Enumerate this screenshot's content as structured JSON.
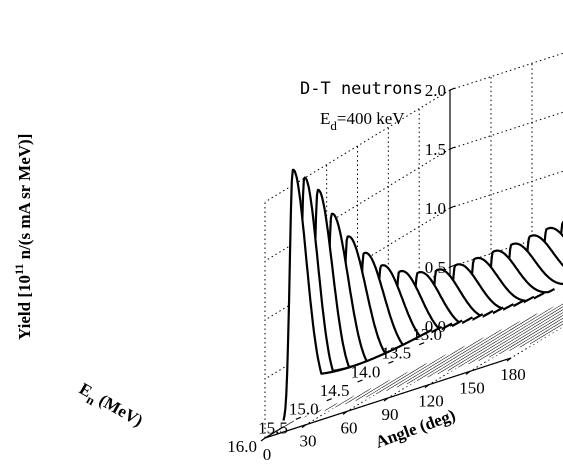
{
  "chart_data": {
    "type": "waterfall-3d",
    "title": "",
    "annotation": {
      "line1": "D-T neutrons",
      "line2_symbol": "E",
      "line2_sub": "d",
      "line2_value": "=400 keV"
    },
    "xaxis": {
      "label": "Angle (deg)",
      "range": [
        0,
        180
      ],
      "ticks": [
        "0",
        "30",
        "60",
        "90",
        "120",
        "150",
        "180"
      ],
      "tick_values": [
        0,
        30,
        60,
        90,
        120,
        150,
        180
      ]
    },
    "yaxis": {
      "label_symbol": "E",
      "label_sub": "n",
      "label_rest": " (MeV)",
      "range": [
        13.0,
        16.0
      ],
      "ticks": [
        "13.0",
        "13.5",
        "14.0",
        "14.5",
        "15.0",
        "15.5",
        "16.0"
      ],
      "tick_values": [
        13.0,
        13.5,
        14.0,
        14.5,
        15.0,
        15.5,
        16.0
      ]
    },
    "zaxis": {
      "label_pre": "Yield [10",
      "label_sup": "11",
      "label_post": " n/(s mA sr MeV)]",
      "range": [
        0,
        2.0
      ],
      "ticks": [
        "0.0",
        "0.5",
        "1.0",
        "1.5",
        "2.0"
      ],
      "tick_values": [
        0,
        0.5,
        1.0,
        1.5,
        2.0
      ]
    },
    "grid": true,
    "series_description": "Neutron yield spectra vs angle; peak energy falls from ~15.5 MeV at 0 deg to ~13.4 MeV at 180 deg",
    "angles": [
      0,
      7.5,
      15,
      22.5,
      30,
      37.5,
      45,
      52.5,
      60,
      67.5,
      75,
      82.5,
      90,
      97.5,
      105,
      112.5,
      120,
      127.5,
      135,
      142.5,
      150,
      157.5,
      165,
      172.5,
      180
    ],
    "peak_energy_MeV": [
      15.55,
      15.53,
      15.48,
      15.42,
      15.33,
      15.23,
      15.12,
      14.99,
      14.86,
      14.72,
      14.58,
      14.44,
      14.3,
      14.17,
      14.04,
      13.93,
      13.83,
      13.74,
      13.66,
      13.6,
      13.55,
      13.52,
      13.49,
      13.48,
      13.47
    ],
    "peak_yield": [
      2.1,
      2.0,
      1.85,
      1.6,
      1.35,
      1.15,
      0.98,
      0.86,
      0.78,
      0.73,
      0.7,
      0.68,
      0.67,
      0.66,
      0.66,
      0.66,
      0.66,
      0.66,
      0.66,
      0.66,
      0.66,
      0.66,
      0.66,
      0.66,
      0.66
    ],
    "energy_range_MeV": [
      13.3,
      15.7
    ],
    "base_level": 0.03
  }
}
